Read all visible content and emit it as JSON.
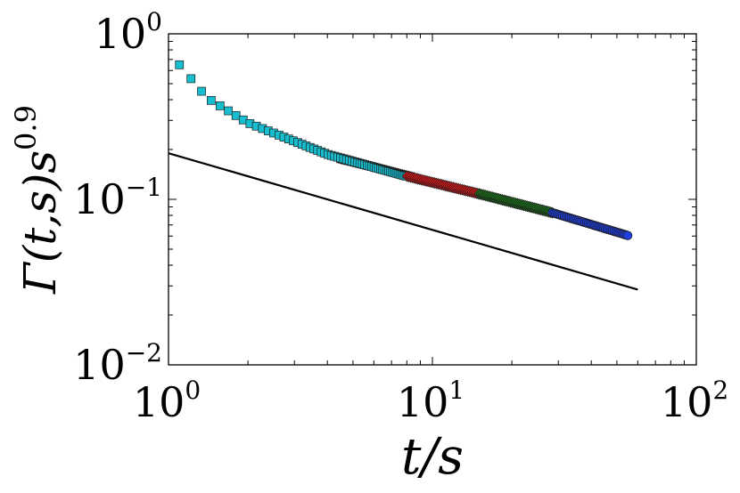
{
  "chart_data": {
    "type": "scatter",
    "title": "",
    "xlabel": "t/s",
    "ylabel": "Γ(t,s)s^0.9",
    "xscale": "log",
    "yscale": "log",
    "xlim": [
      1,
      100
    ],
    "ylim": [
      0.01,
      1
    ],
    "x_ticks": [
      {
        "base": "10",
        "exp": "0",
        "value": 1
      },
      {
        "base": "10",
        "exp": "1",
        "value": 10
      },
      {
        "base": "10",
        "exp": "2",
        "value": 100
      }
    ],
    "y_ticks": [
      {
        "base": "10",
        "exp": "0",
        "value": 1
      },
      {
        "base": "10",
        "exp": "−1",
        "value": 0.1
      },
      {
        "base": "10",
        "exp": "−2",
        "value": 0.01
      }
    ],
    "grid": false,
    "legend": "none",
    "reference_line": {
      "x": [
        1,
        60
      ],
      "y": [
        0.19,
        0.0285
      ],
      "color": "#000000"
    },
    "series": [
      {
        "marker": "square",
        "color": "#17BECF",
        "x_range": [
          1.1,
          8.0
        ],
        "count": 60,
        "y_at": [
          [
            1.1,
            0.65
          ],
          [
            1.4,
            0.41
          ],
          [
            2.0,
            0.29
          ],
          [
            4.0,
            0.187
          ],
          [
            8.0,
            0.138
          ]
        ]
      },
      {
        "marker": "triangle",
        "color": "#000000",
        "x_range": [
          4.5,
          8.5
        ],
        "count": 40,
        "y_at": [
          [
            4.5,
            0.175
          ],
          [
            8.5,
            0.136
          ]
        ]
      },
      {
        "marker": "diamond",
        "color": "#E31A1C",
        "x_range": [
          8.0,
          15.0
        ],
        "count": 40,
        "y_at": [
          [
            8.0,
            0.138
          ],
          [
            15.0,
            0.108
          ]
        ]
      },
      {
        "marker": "diamond",
        "color": "#1E7B1E",
        "x_range": [
          15.0,
          28.5
        ],
        "count": 45,
        "y_at": [
          [
            15.0,
            0.108
          ],
          [
            28.5,
            0.083
          ]
        ]
      },
      {
        "marker": "circle",
        "color": "#1F3FE0",
        "x_range": [
          28.5,
          55.0
        ],
        "count": 45,
        "y_at": [
          [
            28.5,
            0.083
          ],
          [
            55.0,
            0.0605
          ]
        ]
      }
    ]
  }
}
